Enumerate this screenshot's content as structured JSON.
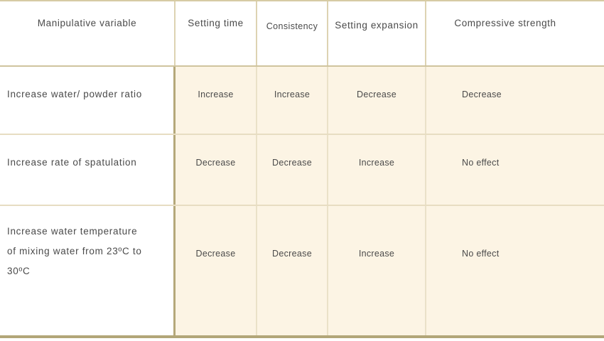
{
  "table": {
    "columns": [
      {
        "label": "Manipulative variable"
      },
      {
        "label": "Setting time"
      },
      {
        "label": "Consistency"
      },
      {
        "label": "Setting expansion"
      },
      {
        "label": "Compressive strength"
      }
    ],
    "rows": [
      {
        "variable": "Increase water/ powder ratio",
        "setting_time": "Increase",
        "consistency": "Increase",
        "setting_expansion": "Decrease",
        "compressive_strength": "Decrease"
      },
      {
        "variable": "Increase rate of spatulation",
        "setting_time": "Decrease",
        "consistency": "Decrease",
        "setting_expansion": "Increase",
        "compressive_strength": "No effect"
      },
      {
        "variable": "Increase water  temperature of  mixing water from 23ºC to 30ºC",
        "variable_lines": {
          "0": "Increase water  temperature",
          "1": "of  mixing water from 23ºC to",
          "2": "30ºC"
        },
        "setting_time": "Decrease",
        "consistency": "Decrease",
        "setting_expansion": "Increase",
        "compressive_strength": "No effect"
      }
    ],
    "colors": {
      "cream_background": "#fcf4e4",
      "outer_border_top": "#d6cba4",
      "outer_border_bottom": "#b2a678",
      "header_separator": "#cfc49e",
      "row_separator": "#e7ddc2",
      "first_column_separator": "#b5a87a",
      "text": "#4a4a4a"
    }
  }
}
